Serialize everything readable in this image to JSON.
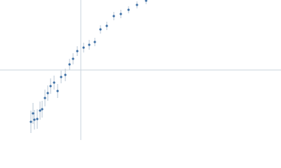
{
  "chart_data": {
    "type": "scatter",
    "x": [
      -71,
      -68,
      -66,
      -62,
      -58,
      -55,
      -51,
      -47,
      -43,
      -38,
      -33,
      -28,
      -22,
      -16,
      -11,
      -5,
      4,
      12,
      20,
      28,
      37,
      47,
      57,
      68,
      80,
      93
    ],
    "series": [
      {
        "color": "#3d6fa5",
        "values": [
          -74,
          -62,
          -71,
          -70,
          -58,
          -56,
          -40,
          -33,
          -23,
          -18,
          -30,
          -10,
          -7,
          8,
          16,
          27,
          32,
          36,
          40,
          58,
          63,
          77,
          80,
          86,
          93,
          99
        ],
        "errors": [
          16,
          15,
          14,
          14,
          13,
          12,
          12,
          11,
          11,
          10,
          10,
          9,
          9,
          8,
          8,
          7,
          7,
          7,
          6,
          6,
          6,
          6,
          6,
          5,
          5,
          5
        ]
      }
    ],
    "xlim": [
      -115,
      285
    ],
    "ylim": [
      -100,
      100
    ],
    "xticks": [
      0
    ],
    "yticks": [
      0
    ],
    "grid": true
  }
}
